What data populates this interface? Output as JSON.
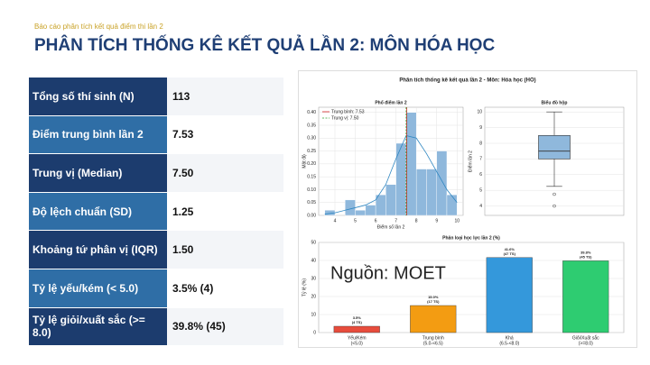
{
  "header": {
    "subtitle": "Báo cáo phân tích kết quả điểm thi lần 2",
    "title": "PHÂN TÍCH THỐNG KÊ KẾT QUẢ LẦN 2: MÔN HÓA HỌC"
  },
  "table": {
    "rows": [
      [
        "Tổng số thí sinh (N)",
        "113"
      ],
      [
        "Điểm trung bình lần 2",
        "7.53"
      ],
      [
        "Trung vị (Median)",
        "7.50"
      ],
      [
        "Độ lệch chuẩn (SD)",
        "1.25"
      ],
      [
        "Khoảng tứ phân vị (IQR)",
        "1.50"
      ],
      [
        "Tỷ lệ yếu/kém (< 5.0)",
        "3.5% (4)"
      ],
      [
        "Tỷ lệ giỏi/xuất sắc (>= 8.0)",
        "39.8% (45)"
      ]
    ]
  },
  "figure": {
    "title": "Phân tích thống kê kết quả lần 2 - Môn: Hóa học (HO)",
    "source": "Nguồn: MOET"
  },
  "chart_data": [
    {
      "type": "histogram",
      "title": "Phổ điểm lần 2",
      "xlabel": "Điểm số lần 2",
      "ylabel": "Mật độ",
      "bins": [
        3.5,
        4,
        4.5,
        5,
        5.5,
        6,
        6.5,
        7,
        7.5,
        8,
        8.5,
        9,
        9.5,
        10
      ],
      "values": [
        0.02,
        0,
        0.06,
        0.02,
        0.04,
        0.08,
        0.12,
        0.28,
        0.4,
        0.18,
        0.18,
        0.25,
        0.08
      ],
      "color": "#8fb8dc",
      "xlim": [
        3.2,
        10.3
      ],
      "xticks": [
        4,
        5,
        6,
        7,
        8,
        9,
        10
      ],
      "ylim": [
        0,
        0.42
      ],
      "yticks": [
        {
          "value": 0,
          "label": "0.00"
        },
        {
          "value": 0.05,
          "label": "0.05"
        },
        {
          "value": 0.1,
          "label": "0.10"
        },
        {
          "value": 0.15,
          "label": "0.15"
        },
        {
          "value": 0.2,
          "label": "0.20"
        },
        {
          "value": 0.25,
          "label": "0.25"
        },
        {
          "value": 0.3,
          "label": "0.30"
        },
        {
          "value": 0.35,
          "label": "0.35"
        },
        {
          "value": 0.4,
          "label": "0.40"
        }
      ],
      "kde": {
        "x": [
          3.5,
          4,
          4.5,
          5,
          5.5,
          6,
          6.5,
          7,
          7.5,
          8,
          8.5,
          9,
          9.5,
          10
        ],
        "values": [
          0.005,
          0.01,
          0.02,
          0.03,
          0.04,
          0.06,
          0.12,
          0.22,
          0.31,
          0.3,
          0.24,
          0.17,
          0.1,
          0.05
        ],
        "color": "#2e86c1"
      },
      "lines": [
        {
          "name": "Trung bình: 7.53",
          "value": 7.53,
          "color": "#d62728"
        },
        {
          "name": "Trung vị: 7.50",
          "value": 7.5,
          "color": "#2ca02c"
        }
      ],
      "grid": true
    },
    {
      "type": "box",
      "title": "Biểu đồ hộp",
      "ylabel": "Điểm lần 2",
      "ylim": [
        3.4,
        10.3
      ],
      "yticks": [
        4,
        5,
        6,
        7,
        8,
        9,
        10
      ],
      "whisker_low": 5.25,
      "q1": 7,
      "median": 7.5,
      "q3": 8.5,
      "whisker_high": 10,
      "outliers": [
        4.75,
        4
      ],
      "color": "#8fb8dc",
      "grid": true
    },
    {
      "type": "bar",
      "title": "Phân loại học lực lần 2 (%)",
      "ylabel": "Tỷ lệ (%)",
      "categories": [
        "Yếu/Kém",
        "Trung bình",
        "Khá",
        "Giỏi/Xuất sắc"
      ],
      "category_ranges": [
        "(<5.0)",
        "(5.0-<6.5)",
        "(6.5-<8.0)",
        "(>=8.0)"
      ],
      "values": [
        3.5,
        15.0,
        41.6,
        39.8
      ],
      "value_labels": [
        "3.5%",
        "15.0%",
        "41.6%",
        "39.8%"
      ],
      "count_labels": [
        "(4 TS)",
        "(17 TS)",
        "(47 TS)",
        "(45 TS)"
      ],
      "colors": [
        "#e74c3c",
        "#f39c12",
        "#3498db",
        "#2ecc71"
      ],
      "ylim": [
        0,
        50
      ],
      "yticks": [
        0,
        10,
        20,
        30,
        40,
        50
      ],
      "grid": true
    }
  ]
}
